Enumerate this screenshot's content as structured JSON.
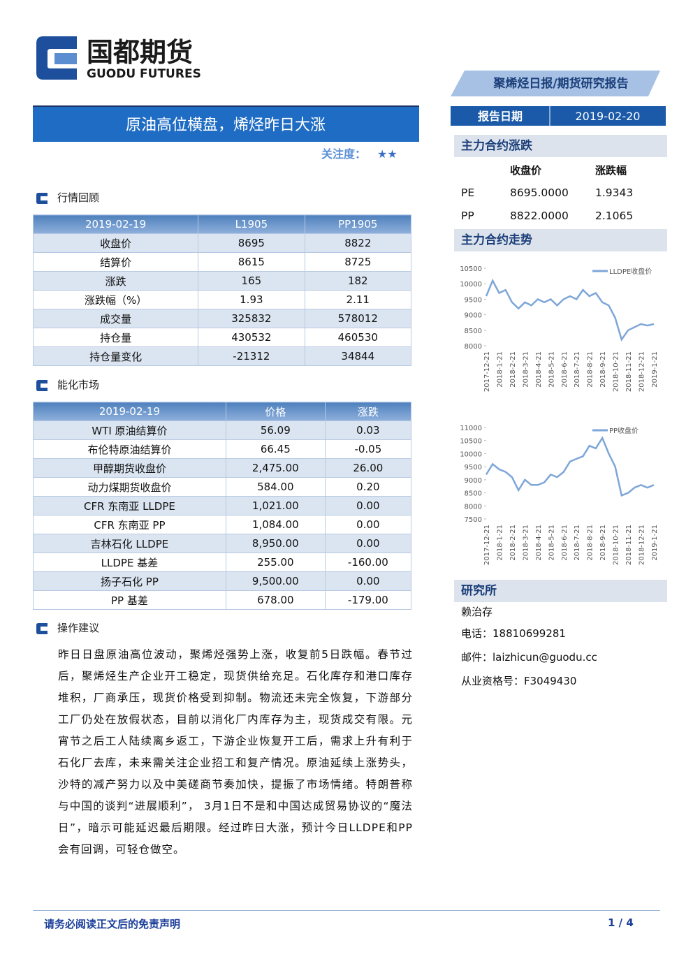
{
  "header": {
    "logo_cn": "国都期货",
    "logo_en": "GUODU FUTURES",
    "report_type": "聚烯烃日报/期货研究报告",
    "title": "原油高位横盘，烯烃昨日大涨",
    "attention_label": "关注度：",
    "attention_stars": "★★",
    "date_label": "报告日期",
    "date": "2019-02-20"
  },
  "sections": {
    "review": "行情回顾",
    "energy": "能化市场",
    "advice": "操作建议",
    "main_change": "主力合约涨跌",
    "main_trend": "主力合约走势",
    "institute": "研究所"
  },
  "market_review": {
    "header": [
      "2019-02-19",
      "L1905",
      "PP1905"
    ],
    "rows": [
      [
        "收盘价",
        "8695",
        "8822"
      ],
      [
        "结算价",
        "8615",
        "8725"
      ],
      [
        "涨跌",
        "165",
        "182"
      ],
      [
        "涨跌幅（%）",
        "1.93",
        "2.11"
      ],
      [
        "成交量",
        "325832",
        "578012"
      ],
      [
        "持仓量",
        "430532",
        "460530"
      ],
      [
        "持仓量变化",
        "-21312",
        "34844"
      ]
    ]
  },
  "energy_market": {
    "header": [
      "2019-02-19",
      "价格",
      "涨跌"
    ],
    "rows": [
      [
        "WTI 原油结算价",
        "56.09",
        "0.03"
      ],
      [
        "布伦特原油结算价",
        "66.45",
        "-0.05"
      ],
      [
        "甲醇期货收盘价",
        "2,475.00",
        "26.00"
      ],
      [
        "动力煤期货收盘价",
        "584.00",
        "0.20"
      ],
      [
        "CFR 东南亚 LLDPE",
        "1,021.00",
        "0.00"
      ],
      [
        "CFR 东南亚 PP",
        "1,084.00",
        "0.00"
      ],
      [
        "吉林石化 LLDPE",
        "8,950.00",
        "0.00"
      ],
      [
        "LLDPE 基差",
        "255.00",
        "-160.00"
      ],
      [
        "扬子石化 PP",
        "9,500.00",
        "0.00"
      ],
      [
        "PP 基差",
        "678.00",
        "-179.00"
      ]
    ]
  },
  "main_contract": {
    "header": [
      "收盘价",
      "涨跌幅"
    ],
    "rows": [
      [
        "PE",
        "8695.0000",
        "1.9343"
      ],
      [
        "PP",
        "8822.0000",
        "2.1065"
      ]
    ]
  },
  "advice_text": "昨日日盘原油高位波动，聚烯烃强势上涨，收复前5日跌幅。春节过后，聚烯烃生产企业开工稳定，现货供给充足。石化库存和港口库存堆积，厂商承压，现货价格受到抑制。物流还未完全恢复，下游部分工厂仍处在放假状态，目前以消化厂内库存为主，现货成交有限。元宵节之后工人陆续离乡返工，下游企业恢复开工后，需求上升有利于石化厂去库，未来需关注企业招工和复产情况。原油延续上涨势头，沙特的减产努力以及中美磋商节奏加快，提振了市场情绪。特朗普称与中国的谈判“进展顺利”， 3月1日不是和中国达成贸易协议的“魔法日”，暗示可能延迟最后期限。经过昨日大涨，预计今日LLDPE和PP会有回调，可轻仓做空。",
  "contact": {
    "name": "赖治存",
    "phone": "电话：18810699281",
    "email": "邮件：laizhicun@guodu.cc",
    "license": "从业资格号：F3049430"
  },
  "footer": {
    "disclaimer": "请务必阅读正文后的免责声明",
    "page": "1 / 4"
  },
  "chart_data": [
    {
      "type": "line",
      "legend": "upper right",
      "categories": [
        "2017-12-21",
        null,
        "2018-1-21",
        null,
        "2018-2-21",
        null,
        "2018-3-21",
        null,
        "2018-4-21",
        null,
        "2018-5-21",
        null,
        "2018-6-21",
        null,
        "2018-7-21",
        null,
        "2018-8-21",
        null,
        "2018-9-21",
        null,
        "2018-10-21",
        null,
        "2018-11-21",
        null,
        "2018-12-21",
        null,
        "2019-1-21"
      ],
      "series": [
        {
          "name": "LLDPE收盘价",
          "color": "#7ea6d8",
          "values": [
            9600,
            10100,
            9700,
            9800,
            9400,
            9200,
            9400,
            9300,
            9500,
            9400,
            9500,
            9300,
            9500,
            9600,
            9500,
            9800,
            9600,
            9700,
            9400,
            9300,
            8900,
            8200,
            8500,
            8600,
            8700,
            8650,
            8700
          ]
        }
      ],
      "ylim": [
        8000,
        10500
      ],
      "yticks": [
        8000,
        8500,
        9000,
        9500,
        10000,
        10500
      ]
    },
    {
      "type": "line",
      "legend": "upper right",
      "categories": [
        "2017-12-21",
        null,
        "2018-1-21",
        null,
        "2018-2-21",
        null,
        "2018-3-21",
        null,
        "2018-4-21",
        null,
        "2018-5-21",
        null,
        "2018-6-21",
        null,
        "2018-7-21",
        null,
        "2018-8-21",
        null,
        "2018-9-21",
        null,
        "2018-10-21",
        null,
        "2018-11-21",
        null,
        "2018-12-21",
        null,
        "2019-1-21"
      ],
      "series": [
        {
          "name": "PP收盘价",
          "color": "#7ea6d8",
          "values": [
            9200,
            9600,
            9400,
            9300,
            9100,
            8600,
            9000,
            8800,
            8800,
            8900,
            9200,
            9100,
            9300,
            9700,
            9800,
            9900,
            10300,
            10200,
            10600,
            10000,
            9500,
            8400,
            8500,
            8700,
            8800,
            8700,
            8800
          ]
        }
      ],
      "ylim": [
        7500,
        11000
      ],
      "yticks": [
        7500,
        8000,
        8500,
        9000,
        9500,
        10000,
        10500,
        11000
      ]
    }
  ]
}
